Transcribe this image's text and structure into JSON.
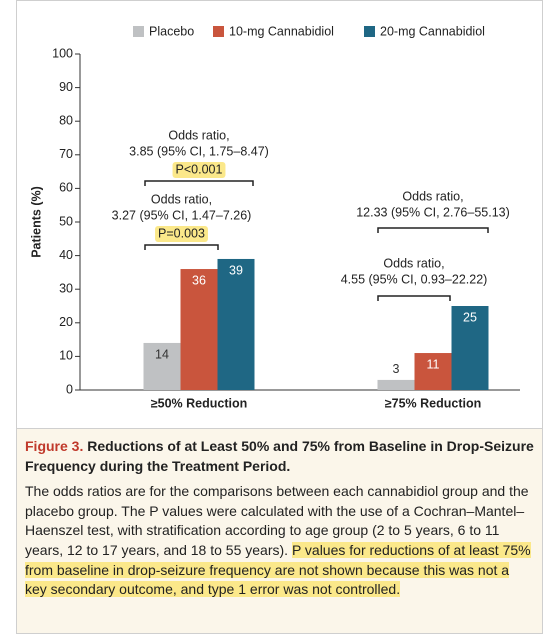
{
  "chart_data": {
    "type": "bar",
    "y_label": "Patients (%)",
    "categories": [
      "≥50% Reduction",
      "≥75% Reduction"
    ],
    "series": [
      {
        "name": "Placebo",
        "color": "#bfc1c3",
        "values": [
          14,
          3
        ]
      },
      {
        "name": "10-mg Cannabidiol",
        "color": "#c9553d",
        "values": [
          36,
          11
        ]
      },
      {
        "name": "20-mg Cannabidiol",
        "color": "#1f6784",
        "values": [
          39,
          25
        ]
      }
    ],
    "ylim": [
      0,
      100
    ],
    "yticks": [
      0,
      10,
      20,
      30,
      40,
      50,
      60,
      70,
      80,
      90,
      100
    ],
    "grid": false,
    "annotations": [
      {
        "lines": [
          "Odds ratio,",
          "3.85 (95% CI, 1.75–8.47)"
        ],
        "p": "P<0.001"
      },
      {
        "lines": [
          "Odds ratio,",
          "3.27 (95% CI, 1.47–7.26)"
        ],
        "p": "P=0.003"
      },
      {
        "lines": [
          "Odds ratio,",
          "12.33 (95% CI, 2.76–55.13)"
        ]
      },
      {
        "lines": [
          "Odds ratio,",
          "4.55 (95% CI, 0.93–22.22)"
        ]
      }
    ]
  },
  "caption": {
    "label": "Figure 3.",
    "title": "Reductions of at Least 50% and 75% from Baseline in Drop-Seizure Frequency during the Treatment Period.",
    "body": "The odds ratios are for the comparisons between each cannabidiol group and the placebo group. The P values were calculated with the use of a Cochran–Mantel–Haenszel test, with stratification according to age group (2 to 5 years, 6 to 11 years, 12 to 17 years, and 18 to 55 years).",
    "body_highlight": "P values for reductions of at least 75% from baseline in drop-seizure frequency are not shown because this was not a key secondary outcome, and type 1 error was not controlled."
  }
}
